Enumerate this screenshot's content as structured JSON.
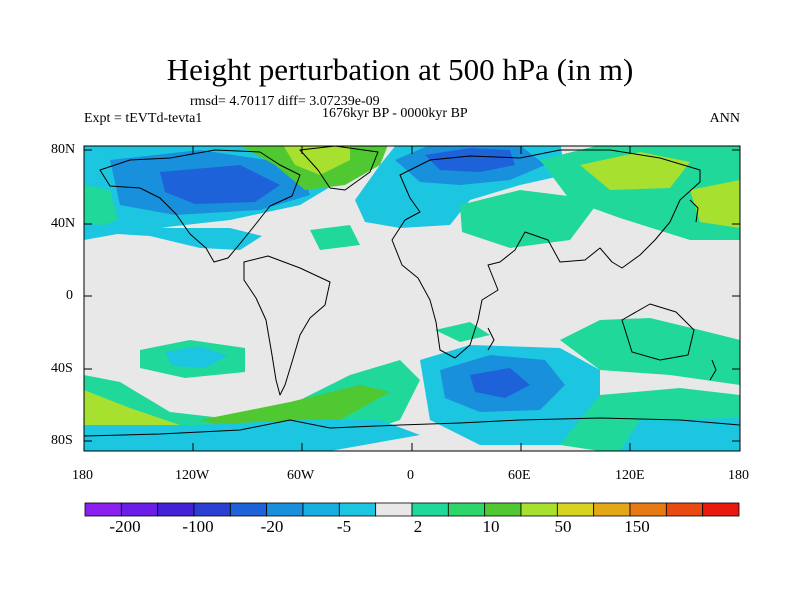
{
  "title": "Height perturbation at 500 hPa (in m)",
  "stats": "rmsd= 4.70117 diff= 3.07239e-09",
  "experiment": "Expt = tEVTd-tevta1",
  "period": "1676kyr BP - 0000kyr BP",
  "season": "ANN",
  "lat_ticks": [
    "80N",
    "40N",
    "0",
    "40S",
    "80S"
  ],
  "lon_ticks": [
    "180",
    "120W",
    "60W",
    "0",
    "60E",
    "120E",
    "180"
  ],
  "colorbar": {
    "colors": [
      "#8b1ff0",
      "#6a1ee8",
      "#4420d8",
      "#2b3fd4",
      "#1d62d8",
      "#1890dc",
      "#18aee0",
      "#1cc6e0",
      "#e8e8e8",
      "#20d89a",
      "#2ed66a",
      "#50c832",
      "#a8e030",
      "#d8d220",
      "#e3a818",
      "#e87a14",
      "#e84a12",
      "#e81a10"
    ],
    "labels": [
      "-200",
      "-100",
      "-20",
      "-5",
      "2",
      "10",
      "50",
      "150"
    ]
  },
  "map_colors": {
    "neutral": "#e8e8e8",
    "light_cyan": "#1cc6e0",
    "cyan": "#18aee0",
    "blue": "#1890dc",
    "deep_blue": "#1d62d8",
    "light_green": "#20d89a",
    "green": "#50c832",
    "yellow_green": "#a8e030"
  }
}
